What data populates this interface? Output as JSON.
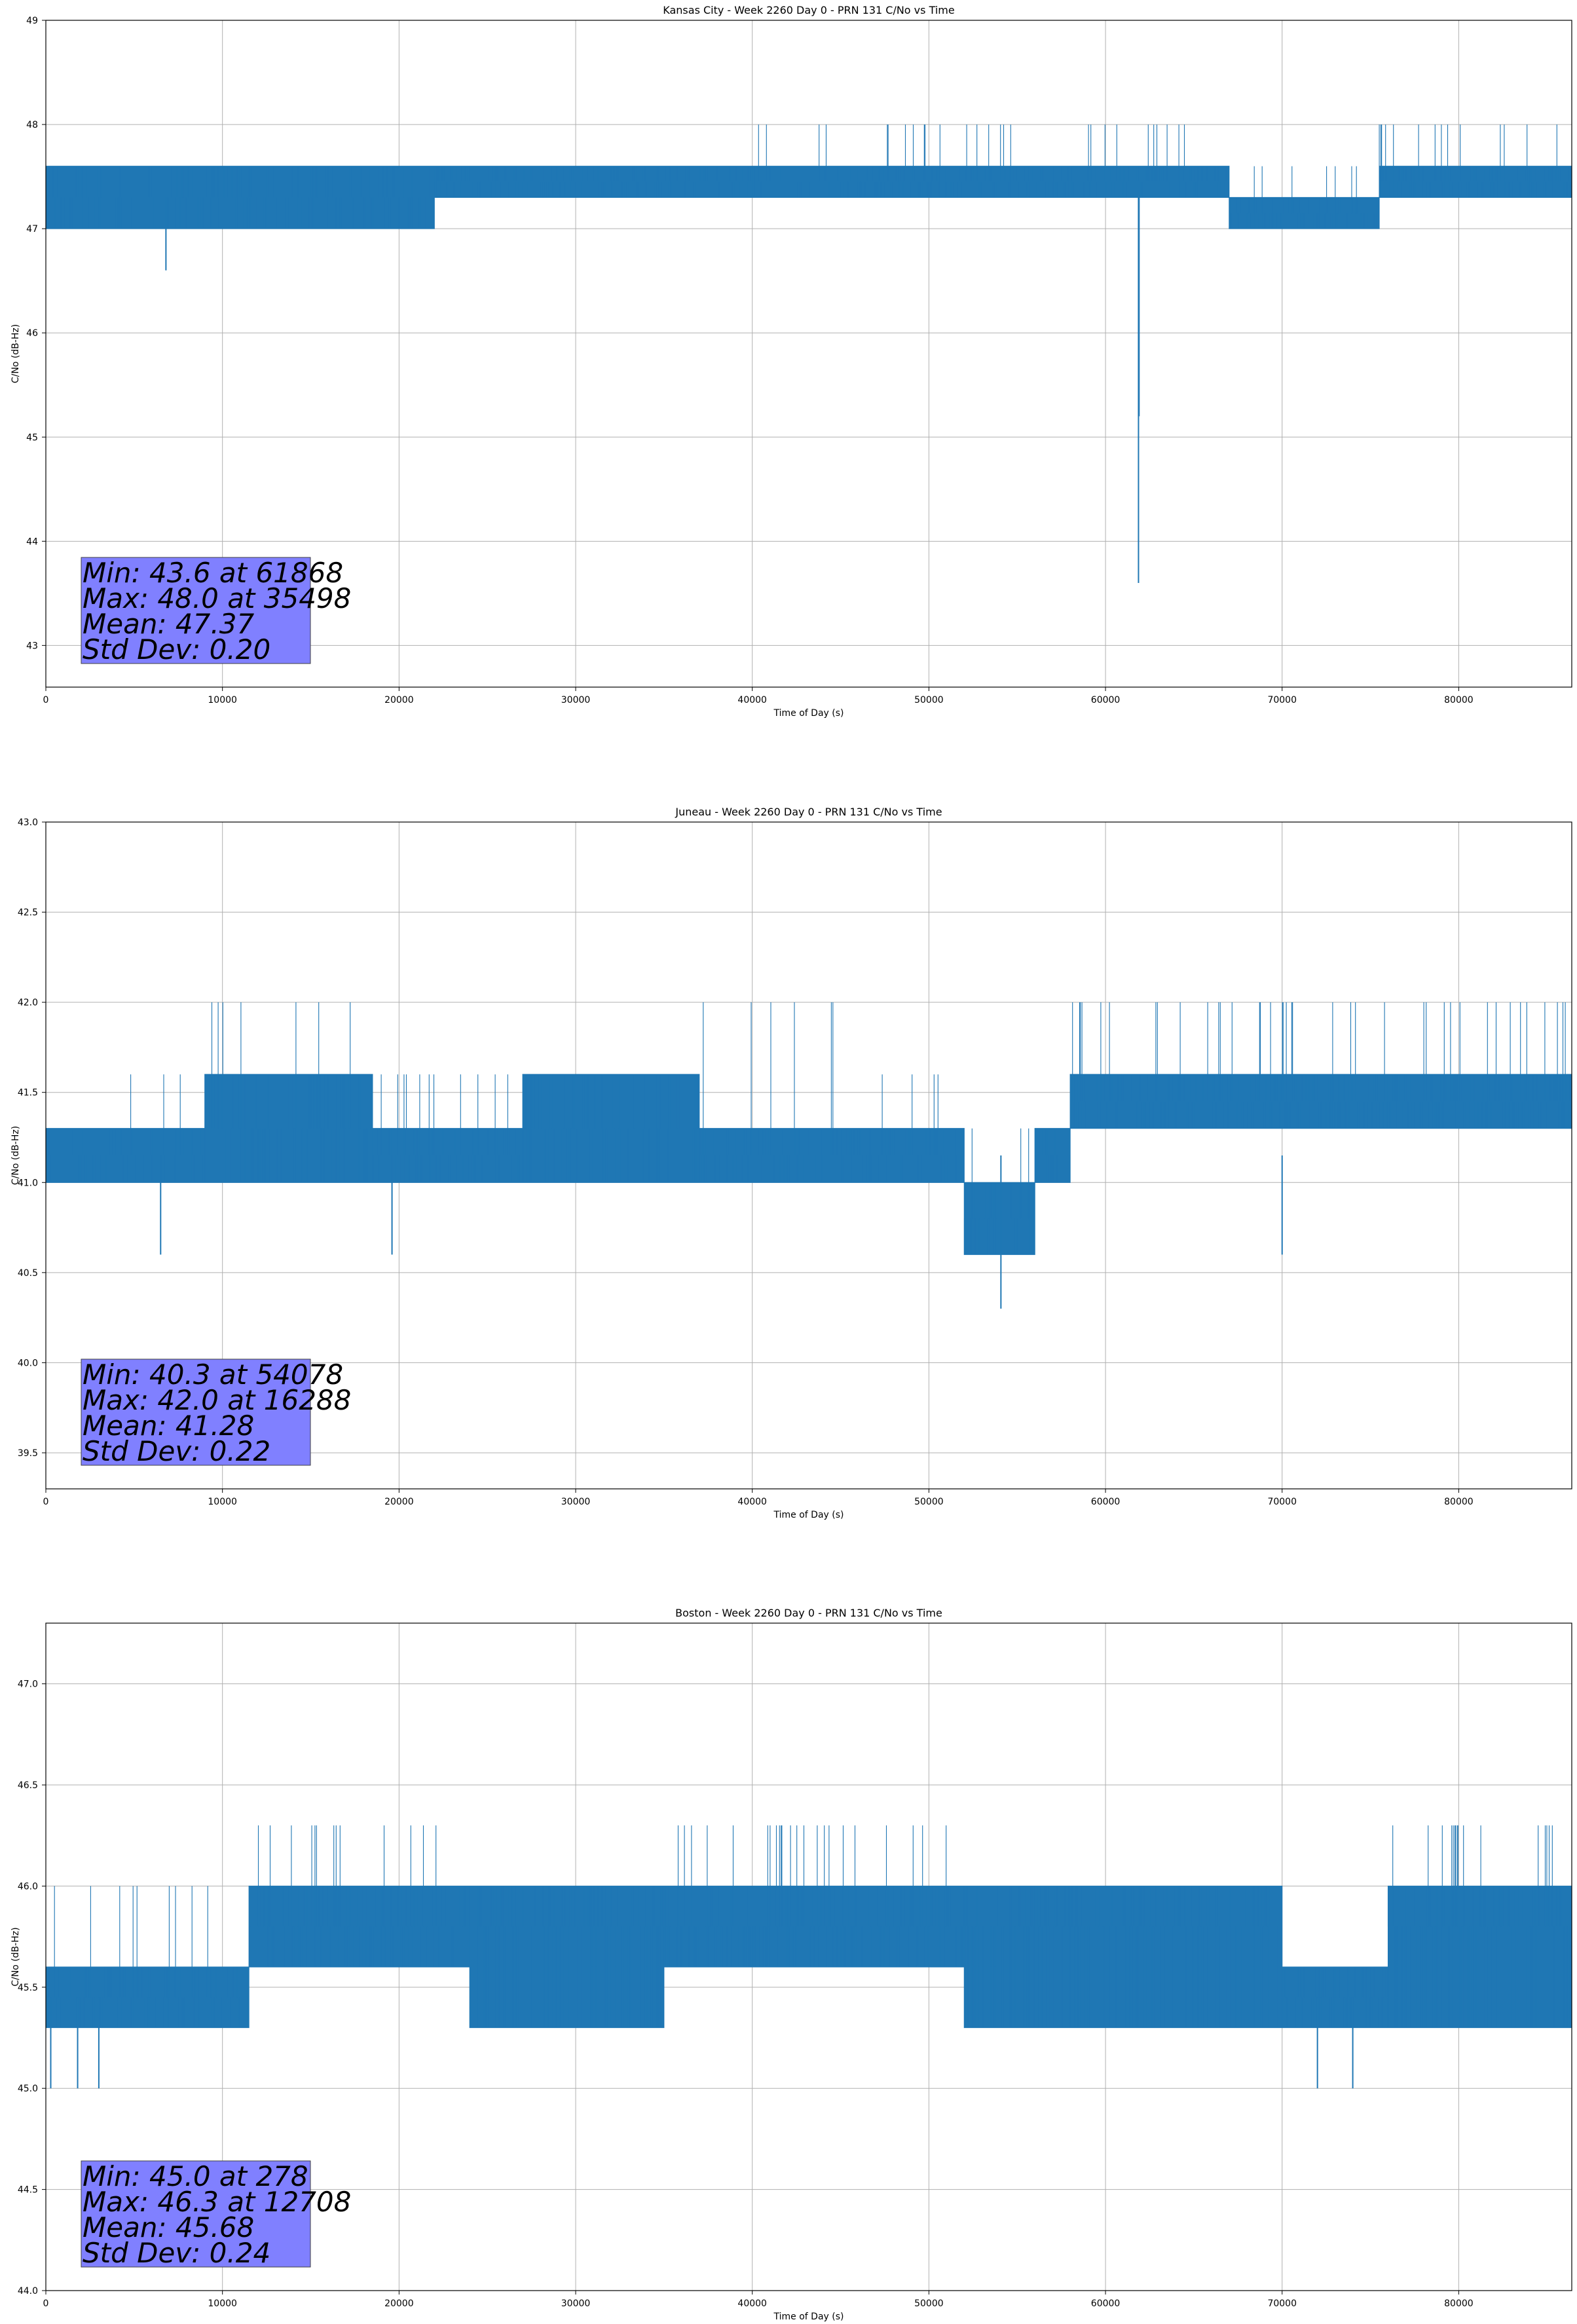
{
  "chart_data": [
    {
      "type": "line",
      "title": "Kansas City - Week 2260 Day 0 - PRN 131 C/No vs Time",
      "xlabel": "Time of Day (s)",
      "ylabel": "C/No (dB-Hz)",
      "xlim": [
        0,
        86400
      ],
      "ylim": [
        42.6,
        49
      ],
      "xticks": [
        0,
        10000,
        20000,
        30000,
        40000,
        50000,
        60000,
        70000,
        80000
      ],
      "yticks": [
        43,
        44,
        45,
        46,
        47,
        48,
        49
      ],
      "xtick_labels": [
        "0",
        "10000",
        "20000",
        "30000",
        "40000",
        "50000",
        "60000",
        "70000",
        "80000"
      ],
      "ytick_labels": [
        "43",
        "44",
        "45",
        "46",
        "47",
        "48",
        "49"
      ],
      "grid": true,
      "color": "#1f77b4",
      "levels": [
        47.0,
        47.3,
        47.6,
        48.0
      ],
      "segments": [
        {
          "x0": 0,
          "x1": 22000,
          "base": 47.3,
          "lo": 47.0,
          "hi": 47.6,
          "top": 47.6,
          "density": 0.25
        },
        {
          "x0": 22000,
          "x1": 40000,
          "base": 47.45,
          "lo": 47.3,
          "hi": 47.6,
          "top": 47.6,
          "density": 0.3
        },
        {
          "x0": 40000,
          "x1": 46000,
          "base": 47.45,
          "lo": 47.3,
          "hi": 47.6,
          "top": 48.0,
          "density": 0.2
        },
        {
          "x0": 46000,
          "x1": 67000,
          "base": 47.45,
          "lo": 47.3,
          "hi": 47.6,
          "top": 48.0,
          "density": 0.35
        },
        {
          "x0": 67000,
          "x1": 75500,
          "base": 47.15,
          "lo": 47.0,
          "hi": 47.3,
          "top": 47.6,
          "density": 0.3
        },
        {
          "x0": 75500,
          "x1": 86400,
          "base": 47.45,
          "lo": 47.3,
          "hi": 47.6,
          "top": 48.0,
          "density": 0.45
        }
      ],
      "dips": [
        {
          "x": 6800,
          "y": 46.6
        },
        {
          "x": 61868,
          "y": 43.6
        },
        {
          "x": 61900,
          "y": 45.2
        }
      ],
      "stats": {
        "min": "Min: 43.6 at 61868",
        "max": "Max: 48.0 at 35498",
        "mean": "Mean: 47.37",
        "std": "Std Dev: 0.20"
      }
    },
    {
      "type": "line",
      "title": "Juneau - Week 2260 Day 0 - PRN 131 C/No vs Time",
      "xlabel": "Time of Day (s)",
      "ylabel": "C/No (dB-Hz)",
      "xlim": [
        0,
        86400
      ],
      "ylim": [
        39.3,
        43.0
      ],
      "xticks": [
        0,
        10000,
        20000,
        30000,
        40000,
        50000,
        60000,
        70000,
        80000
      ],
      "yticks": [
        39.5,
        40.0,
        40.5,
        41.0,
        41.5,
        42.0,
        42.5,
        43.0
      ],
      "xtick_labels": [
        "0",
        "10000",
        "20000",
        "30000",
        "40000",
        "50000",
        "60000",
        "70000",
        "80000"
      ],
      "ytick_labels": [
        "39.5",
        "40.0",
        "40.5",
        "41.0",
        "41.5",
        "42.0",
        "42.5",
        "43.0"
      ],
      "grid": true,
      "color": "#1f77b4",
      "segments": [
        {
          "x0": 0,
          "x1": 9000,
          "base": 41.15,
          "lo": 41.0,
          "hi": 41.3,
          "top": 41.6,
          "density": 0.25
        },
        {
          "x0": 9000,
          "x1": 18500,
          "base": 41.3,
          "lo": 41.0,
          "hi": 41.6,
          "top": 42.0,
          "density": 0.35
        },
        {
          "x0": 18500,
          "x1": 27000,
          "base": 41.15,
          "lo": 41.0,
          "hi": 41.3,
          "top": 41.6,
          "density": 0.35
        },
        {
          "x0": 27000,
          "x1": 37000,
          "base": 41.3,
          "lo": 41.0,
          "hi": 41.6,
          "top": 41.6,
          "density": 0.35
        },
        {
          "x0": 37000,
          "x1": 45000,
          "base": 41.15,
          "lo": 41.0,
          "hi": 41.3,
          "top": 42.0,
          "density": 0.3
        },
        {
          "x0": 45000,
          "x1": 52000,
          "base": 41.15,
          "lo": 41.0,
          "hi": 41.3,
          "top": 41.6,
          "density": 0.3
        },
        {
          "x0": 52000,
          "x1": 56000,
          "base": 40.8,
          "lo": 40.6,
          "hi": 41.0,
          "top": 41.3,
          "density": 0.3
        },
        {
          "x0": 56000,
          "x1": 58000,
          "base": 41.15,
          "lo": 41.0,
          "hi": 41.3,
          "top": 41.6,
          "density": 0.3
        },
        {
          "x0": 58000,
          "x1": 86400,
          "base": 41.45,
          "lo": 41.3,
          "hi": 41.6,
          "top": 42.0,
          "density": 0.45
        }
      ],
      "dips": [
        {
          "x": 6500,
          "y": 40.6
        },
        {
          "x": 54078,
          "y": 40.3
        },
        {
          "x": 19600,
          "y": 40.6
        },
        {
          "x": 70000,
          "y": 40.6
        }
      ],
      "stats": {
        "min": "Min: 40.3 at 54078",
        "max": "Max: 42.0 at 16288",
        "mean": "Mean: 41.28",
        "std": "Std Dev: 0.22"
      }
    },
    {
      "type": "line",
      "title": "Boston - Week 2260 Day 0 - PRN 131 C/No vs Time",
      "xlabel": "Time of Day (s)",
      "ylabel": "C/No (dB-Hz)",
      "xlim": [
        0,
        86400
      ],
      "ylim": [
        44.0,
        47.3
      ],
      "xticks": [
        0,
        10000,
        20000,
        30000,
        40000,
        50000,
        60000,
        70000,
        80000
      ],
      "yticks": [
        44.0,
        44.5,
        45.0,
        45.5,
        46.0,
        46.5,
        47.0
      ],
      "xtick_labels": [
        "0",
        "10000",
        "20000",
        "30000",
        "40000",
        "50000",
        "60000",
        "70000",
        "80000"
      ],
      "ytick_labels": [
        "44.0",
        "44.5",
        "45.0",
        "45.5",
        "46.0",
        "46.5",
        "47.0"
      ],
      "grid": true,
      "color": "#1f77b4",
      "segments": [
        {
          "x0": 0,
          "x1": 11500,
          "base": 45.45,
          "lo": 45.3,
          "hi": 45.6,
          "top": 46.0,
          "density": 0.3
        },
        {
          "x0": 11500,
          "x1": 24000,
          "base": 45.8,
          "lo": 45.6,
          "hi": 46.0,
          "top": 46.3,
          "density": 0.4
        },
        {
          "x0": 24000,
          "x1": 35000,
          "base": 45.8,
          "lo": 45.3,
          "hi": 46.0,
          "top": 46.0,
          "density": 0.4
        },
        {
          "x0": 35000,
          "x1": 52000,
          "base": 45.8,
          "lo": 45.6,
          "hi": 46.0,
          "top": 46.3,
          "density": 0.4
        },
        {
          "x0": 52000,
          "x1": 70000,
          "base": 45.8,
          "lo": 45.3,
          "hi": 46.0,
          "top": 46.0,
          "density": 0.4
        },
        {
          "x0": 70000,
          "x1": 76000,
          "base": 45.45,
          "lo": 45.3,
          "hi": 45.6,
          "top": 45.6,
          "density": 0.35
        },
        {
          "x0": 76000,
          "x1": 86400,
          "base": 45.8,
          "lo": 45.3,
          "hi": 46.0,
          "top": 46.3,
          "density": 0.45
        }
      ],
      "dips": [
        {
          "x": 278,
          "y": 45.0
        },
        {
          "x": 1800,
          "y": 45.0
        },
        {
          "x": 3000,
          "y": 45.0
        },
        {
          "x": 72000,
          "y": 45.0
        },
        {
          "x": 74000,
          "y": 45.0
        }
      ],
      "stats": {
        "min": "Min: 45.0 at 278",
        "max": "Max: 46.3 at 12708",
        "mean": "Mean: 45.68",
        "std": "Std Dev: 0.24"
      }
    }
  ]
}
